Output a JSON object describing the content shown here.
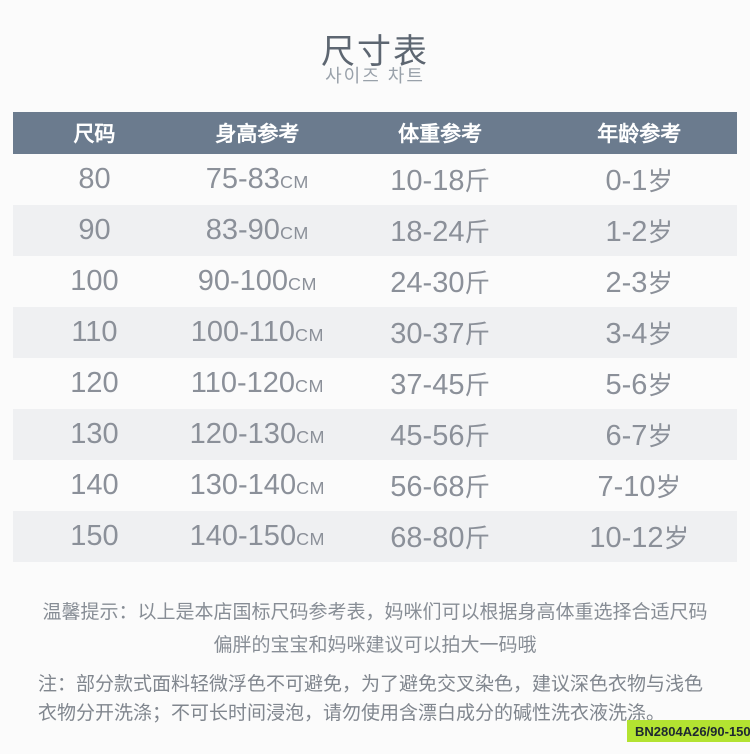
{
  "header": {
    "title": "尺寸表",
    "subtitle": "사이즈 차트"
  },
  "table": {
    "columns": [
      "尺码",
      "身高参考",
      "体重参考",
      "年龄参考"
    ],
    "rows": [
      {
        "size": "80",
        "height": "75-83",
        "height_unit": "CM",
        "weight": "10-18",
        "weight_unit": "斤",
        "age": "0-1",
        "age_unit": "岁"
      },
      {
        "size": "90",
        "height": "83-90",
        "height_unit": "CM",
        "weight": "18-24",
        "weight_unit": "斤",
        "age": "1-2",
        "age_unit": "岁"
      },
      {
        "size": "100",
        "height": "90-100",
        "height_unit": "CM",
        "weight": "24-30",
        "weight_unit": "斤",
        "age": "2-3",
        "age_unit": "岁"
      },
      {
        "size": "110",
        "height": "100-110",
        "height_unit": "CM",
        "weight": "30-37",
        "weight_unit": "斤",
        "age": "3-4",
        "age_unit": "岁"
      },
      {
        "size": "120",
        "height": "110-120",
        "height_unit": "CM",
        "weight": "37-45",
        "weight_unit": "斤",
        "age": "5-6",
        "age_unit": "岁"
      },
      {
        "size": "130",
        "height": "120-130",
        "height_unit": "CM",
        "weight": "45-56",
        "weight_unit": "斤",
        "age": "6-7",
        "age_unit": "岁"
      },
      {
        "size": "140",
        "height": "130-140",
        "height_unit": "CM",
        "weight": "56-68",
        "weight_unit": "斤",
        "age": "7-10",
        "age_unit": "岁"
      },
      {
        "size": "150",
        "height": "140-150",
        "height_unit": "CM",
        "weight": "68-80",
        "weight_unit": "斤",
        "age": "10-12",
        "age_unit": "岁"
      }
    ]
  },
  "tips": {
    "line1": "温馨提示：以上是本店国标尺码参考表，妈咪们可以根据身高体重选择合适尺码",
    "line2": "偏胖的宝宝和妈咪建议可以拍大一码哦"
  },
  "note": {
    "line1": "注：部分款式面料轻微浮色不可避免，为了避免交叉染色，建议深色衣物与浅色",
    "line2": "衣物分开洗涤；不可长时间浸泡，请勿使用含漂白成分的碱性洗衣液洗涤。"
  },
  "badge": {
    "text": "BN2804A26/90-150"
  },
  "colors": {
    "table_header_bg": "#6b7b8e",
    "table_alt_row_bg": "#eff0f2",
    "body_text": "#8b9099",
    "title_text": "#5d6671",
    "badge_bg": "#b3e331",
    "badge_text": "#1e2731"
  }
}
